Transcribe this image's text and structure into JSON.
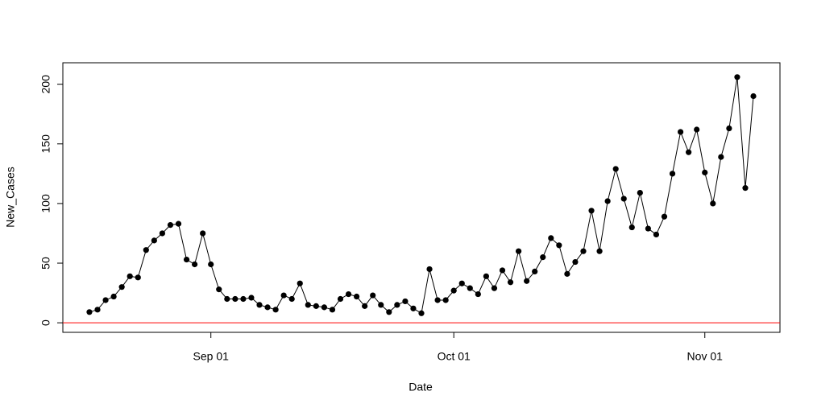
{
  "chart_data": {
    "type": "line",
    "x_label": "Date",
    "y_label": "New_Cases",
    "x": [
      "08-17",
      "08-18",
      "08-19",
      "08-20",
      "08-21",
      "08-22",
      "08-23",
      "08-24",
      "08-25",
      "08-26",
      "08-27",
      "08-28",
      "08-29",
      "08-30",
      "08-31",
      "09-01",
      "09-02",
      "09-03",
      "09-04",
      "09-05",
      "09-06",
      "09-07",
      "09-08",
      "09-09",
      "09-10",
      "09-11",
      "09-12",
      "09-13",
      "09-14",
      "09-15",
      "09-16",
      "09-17",
      "09-18",
      "09-19",
      "09-20",
      "09-21",
      "09-22",
      "09-23",
      "09-24",
      "09-25",
      "09-26",
      "09-27",
      "09-28",
      "09-29",
      "09-30",
      "10-01",
      "10-02",
      "10-03",
      "10-04",
      "10-05",
      "10-06",
      "10-07",
      "10-08",
      "10-09",
      "10-10",
      "10-11",
      "10-12",
      "10-13",
      "10-14",
      "10-15",
      "10-16",
      "10-17",
      "10-18",
      "10-19",
      "10-20",
      "10-21",
      "10-22",
      "10-23",
      "10-24",
      "10-25",
      "10-26",
      "10-27",
      "10-28",
      "10-29",
      "10-30",
      "10-31",
      "11-01",
      "11-02",
      "11-03",
      "11-04",
      "11-05",
      "11-06",
      "11-07"
    ],
    "values": [
      9,
      11,
      19,
      22,
      30,
      39,
      38,
      61,
      69,
      75,
      82,
      83,
      53,
      49,
      75,
      49,
      28,
      20,
      20,
      20,
      21,
      15,
      13,
      11,
      23,
      20,
      33,
      15,
      14,
      13,
      11,
      20,
      24,
      22,
      14,
      23,
      15,
      9,
      15,
      18,
      12,
      8,
      45,
      19,
      19,
      27,
      33,
      29,
      24,
      39,
      29,
      44,
      34,
      60,
      35,
      43,
      55,
      71,
      65,
      41,
      51,
      60,
      94,
      60,
      102,
      129,
      104,
      80,
      109,
      79,
      74,
      89,
      125,
      160,
      143,
      162,
      126,
      100,
      139,
      163,
      206,
      113,
      190
    ],
    "color": "#000000",
    "xticks": [
      {
        "value": "09-01",
        "label": "Sep 01"
      },
      {
        "value": "10-01",
        "label": "Oct 01"
      },
      {
        "value": "11-01",
        "label": "Nov 01"
      }
    ],
    "ylim": [
      -8,
      218
    ],
    "yticks": [
      0,
      50,
      100,
      150,
      200
    ],
    "hline": 0,
    "hline_color": "#ff0000"
  }
}
